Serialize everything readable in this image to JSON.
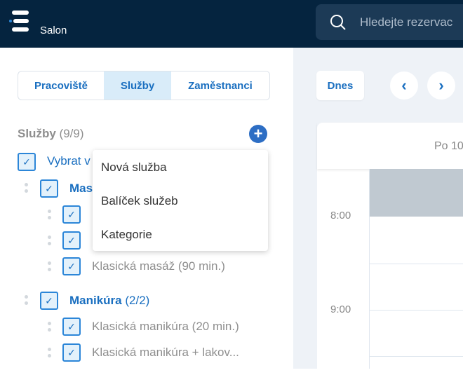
{
  "header": {
    "brand": "Salon",
    "search_placeholder": "Hledejte rezervac"
  },
  "tabs": [
    {
      "label": "Pracoviště",
      "active": false
    },
    {
      "label": "Služby",
      "active": true
    },
    {
      "label": "Zaměstnanci",
      "active": false
    }
  ],
  "toolbar": {
    "today": "Dnes",
    "prev": "‹",
    "next": "›"
  },
  "calendar": {
    "day_header": "Po 10",
    "times": [
      "8:00",
      "9:00"
    ]
  },
  "services": {
    "title": "Služby",
    "count": "(9/9)",
    "select_all": "Vybrat v",
    "categories": [
      {
        "name": "Mas",
        "items": [
          "",
          "",
          "Klasická masáž (90 min.)"
        ]
      },
      {
        "name": "Manikúra",
        "count": "(2/2)",
        "items": [
          "Klasická manikúra (20 min.)",
          "Klasická manikúra + lakov..."
        ]
      }
    ]
  },
  "menu": [
    "Nová služba",
    "Balíček služeb",
    "Kategorie"
  ],
  "colors": {
    "header": "#05243f",
    "accent": "#1a6fc0"
  }
}
